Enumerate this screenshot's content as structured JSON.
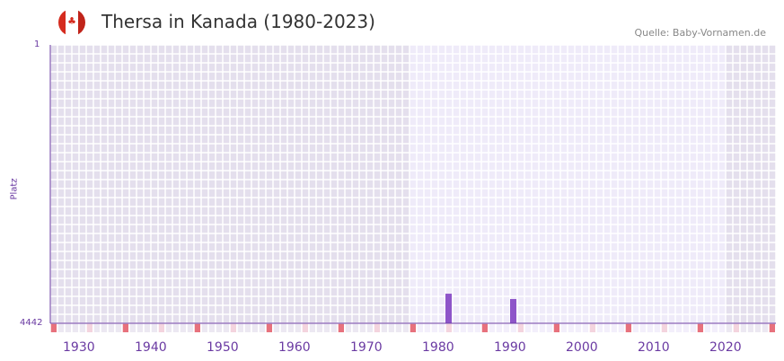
{
  "header": {
    "title": "Thersa in Kanada (1980-2023)",
    "source": "Quelle: Baby-Vornamen.de",
    "flag_icon": "canada-flag-icon"
  },
  "chart_data": {
    "type": "bar",
    "title": "Thersa in Kanada (1980-2023)",
    "xlabel": "",
    "ylabel": "Platz",
    "xlim": [
      1928,
      2028
    ],
    "ylim": [
      4442,
      1
    ],
    "y_ticks": [
      "1",
      "4442"
    ],
    "x_ticks": [
      "1930",
      "1940",
      "1950",
      "1960",
      "1970",
      "1980",
      "1990",
      "2000",
      "2010",
      "2020"
    ],
    "data_range": [
      1978,
      2021
    ],
    "x": [
      1983,
      1992
    ],
    "values": [
      3970,
      4055
    ],
    "colors": {
      "bar": "#8e55c9",
      "axis": "#6a3aa2",
      "shade": "#e4dfed",
      "plot": "#efebf9",
      "marker_decade": "#e7717d",
      "marker_half": "#f4d4de"
    }
  }
}
